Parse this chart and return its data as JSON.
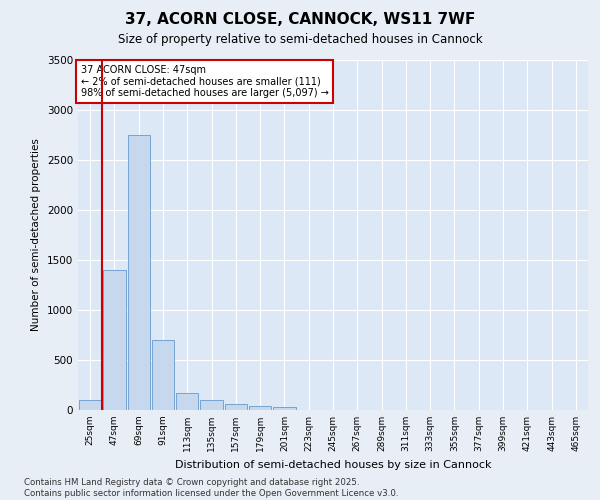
{
  "title": "37, ACORN CLOSE, CANNOCK, WS11 7WF",
  "subtitle": "Size of property relative to semi-detached houses in Cannock",
  "xlabel": "Distribution of semi-detached houses by size in Cannock",
  "ylabel": "Number of semi-detached properties",
  "footer": "Contains HM Land Registry data © Crown copyright and database right 2025.\nContains public sector information licensed under the Open Government Licence v3.0.",
  "annotation_title": "37 ACORN CLOSE: 47sqm",
  "annotation_line1": "← 2% of semi-detached houses are smaller (111)",
  "annotation_line2": "98% of semi-detached houses are larger (5,097) →",
  "property_bin_index": 1,
  "categories": [
    "25sqm",
    "47sqm",
    "69sqm",
    "91sqm",
    "113sqm",
    "135sqm",
    "157sqm",
    "179sqm",
    "201sqm",
    "223sqm",
    "245sqm",
    "267sqm",
    "289sqm",
    "311sqm",
    "333sqm",
    "355sqm",
    "377sqm",
    "399sqm",
    "421sqm",
    "443sqm",
    "465sqm"
  ],
  "values": [
    100,
    1400,
    2750,
    700,
    170,
    100,
    60,
    40,
    30,
    0,
    0,
    0,
    0,
    0,
    0,
    0,
    0,
    0,
    0,
    0,
    0
  ],
  "bar_color": "#c5d8ed",
  "bar_edge_color": "#6699cc",
  "red_line_color": "#cc0000",
  "annotation_box_edge": "#cc0000",
  "background_color": "#e8eef5",
  "plot_bg_color": "#dce8f5",
  "grid_color": "#ffffff",
  "ylim": [
    0,
    3500
  ],
  "yticks": [
    0,
    500,
    1000,
    1500,
    2000,
    2500,
    3000,
    3500
  ]
}
